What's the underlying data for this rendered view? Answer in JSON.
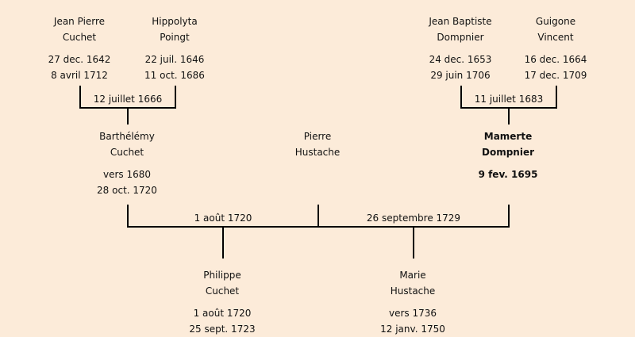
{
  "people": [
    {
      "first": "Jean Pierre",
      "last": "Cuchet",
      "birth": "27 dec. 1642",
      "death": "8 avril 1712"
    },
    {
      "first": "Hippolyta",
      "last": "Poingt",
      "birth": "22 juil. 1646",
      "death": "11 oct. 1686"
    },
    {
      "first": "Jean Baptiste",
      "last": "Dompnier",
      "birth": "24 dec. 1653",
      "death": "29 juin 1706"
    },
    {
      "first": "Guigone",
      "last": "Vincent",
      "birth": "16 dec. 1664",
      "death": "17 dec. 1709"
    },
    {
      "first": "Barthélémy",
      "last": "Cuchet",
      "birth": "vers 1680",
      "death": "28 oct. 1720"
    },
    {
      "first": "Pierre",
      "last": "Hustache"
    },
    {
      "first": "Mamerte",
      "last": "Dompnier",
      "birth": "9 fev. 1695",
      "highlighted": true
    },
    {
      "first": "Philippe",
      "last": "Cuchet",
      "birth": "1 août 1720",
      "death": "25 sept. 1723"
    },
    {
      "first": "Marie",
      "last": "Hustache",
      "birth": "vers 1736",
      "death": "12 janv. 1750"
    }
  ],
  "marriages": [
    {
      "date": "12 juillet 1666"
    },
    {
      "date": "11 juillet 1683"
    },
    {
      "date": "1 août 1720"
    },
    {
      "date": "26 septembre 1729"
    }
  ],
  "colors": {
    "background": "#fcebd9",
    "line": "#000000"
  }
}
